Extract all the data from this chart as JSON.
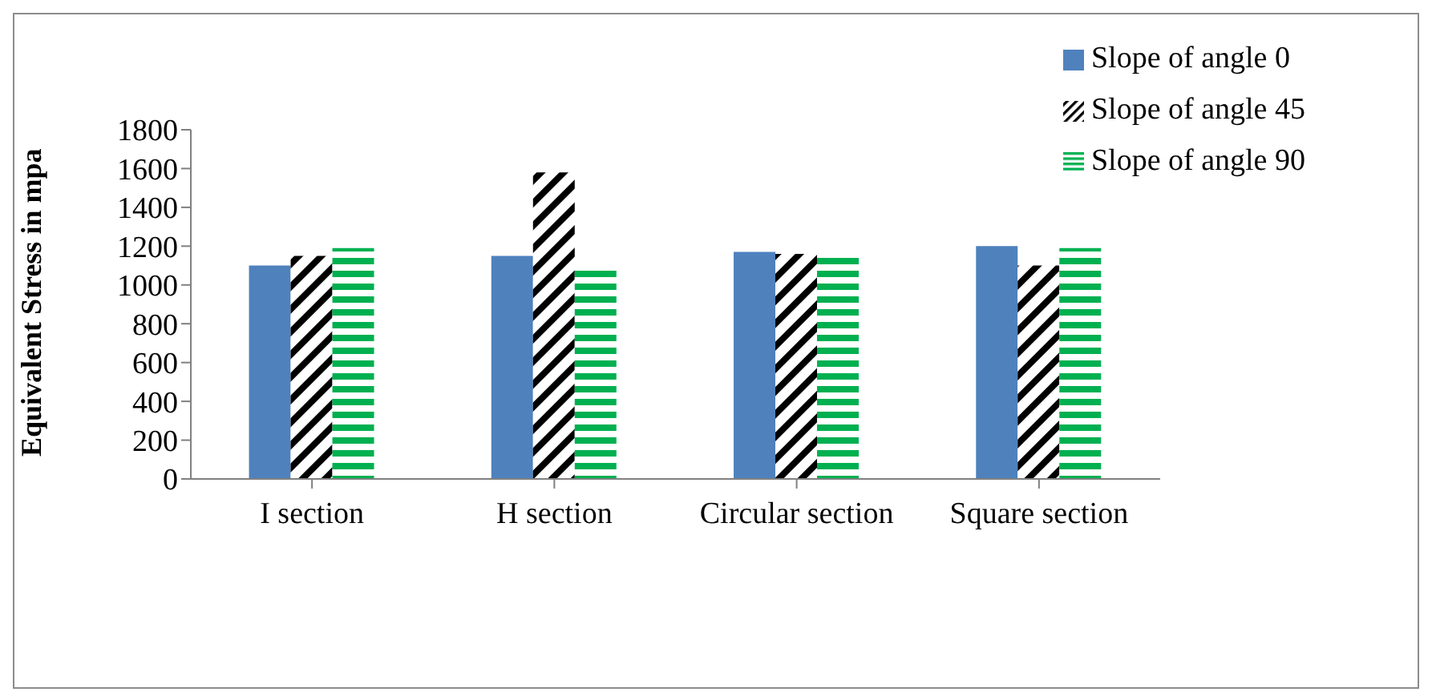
{
  "chart_data": {
    "type": "bar",
    "ylabel": "Equivalent Stress in mpa",
    "categories": [
      "I section",
      "H section",
      "Circular section",
      "Square section"
    ],
    "series": [
      {
        "name": "Slope of angle 0",
        "color": "#4f81bd",
        "values": [
          1100,
          1150,
          1170,
          1200
        ]
      },
      {
        "name": "Slope of angle 45",
        "color": "#000000",
        "values": [
          1150,
          1580,
          1160,
          1100
        ]
      },
      {
        "name": "Slope of angle 90",
        "color": "#00b050",
        "values": [
          1190,
          1090,
          1160,
          1190
        ]
      }
    ],
    "ylim": [
      0,
      1800
    ],
    "yticks": [
      0,
      200,
      400,
      600,
      800,
      1000,
      1200,
      1400,
      1600,
      1800
    ],
    "grid": false,
    "legend": "top right"
  }
}
